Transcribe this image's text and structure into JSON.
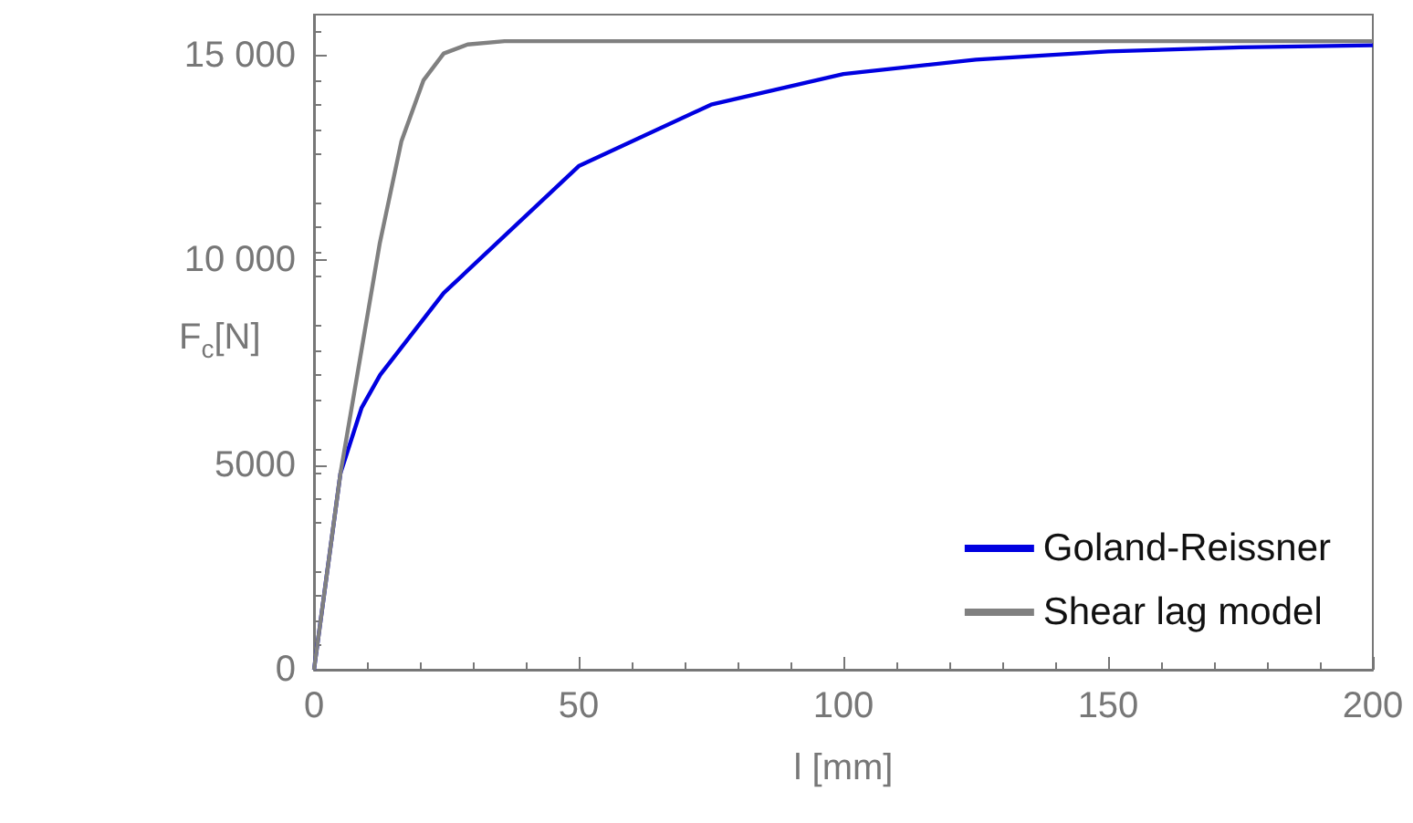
{
  "chart_data": {
    "type": "line",
    "xlabel": "l [mm]",
    "ylabel": "F$_{c}$[N]",
    "xlim": [
      0,
      200
    ],
    "xticks": [
      0,
      50,
      100,
      150,
      200
    ],
    "ylim": [
      0,
      16000
    ],
    "yticks": [
      0,
      5000,
      {
        "value": 10000,
        "label": "10 000"
      },
      {
        "value": 15000,
        "label": "15 000"
      }
    ],
    "legend": "bottom right",
    "marker": "none",
    "line_style": "solid",
    "grid": false,
    "series": [
      {
        "name": "Goland-Reissner",
        "color": "#0000e0",
        "x": [
          0,
          5,
          9,
          12.5,
          24.5,
          50,
          75,
          100,
          125,
          150,
          175,
          200
        ],
        "values": [
          0,
          4800,
          6400,
          7200,
          9200,
          12300,
          13800,
          14550,
          14900,
          15100,
          15200,
          15250
        ]
      },
      {
        "name": "Shear lag model",
        "color": "#808080",
        "x": [
          0,
          5,
          12.4,
          16.5,
          20.7,
          24.5,
          29,
          36,
          50,
          100,
          200
        ],
        "values": [
          0,
          4800,
          10400,
          12900,
          14400,
          15050,
          15270,
          15350,
          15350,
          15350,
          15350
        ]
      }
    ]
  }
}
